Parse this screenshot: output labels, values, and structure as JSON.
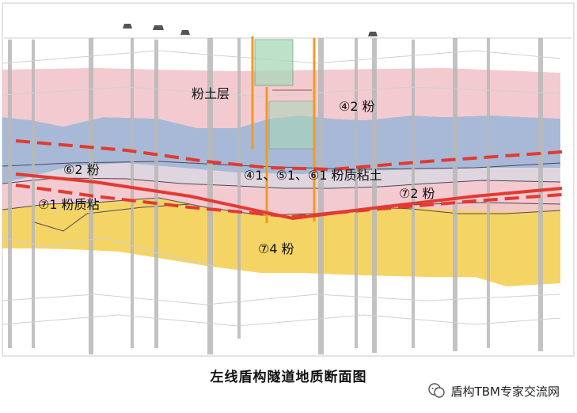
{
  "figure": {
    "caption": "左线盾构隧道地质断面图",
    "watermark": "盾构TBM专家交流网"
  },
  "layers": {
    "silt_top": "粉土层",
    "l4_2": "④2 粉",
    "l6_2": "⑥2 粉",
    "l_mixed": "④1、⑤1、⑥1 粉质粘土",
    "l7_1": "⑦1 粉质粘",
    "l7_2": "⑦2 粉",
    "l7_4": "⑦4 粉"
  },
  "colors": {
    "pink_layer": "#f2c6cc",
    "blue_layer": "#9fb3d3",
    "yellow_layer": "#f4cf55",
    "tunnel_line": "#e23a32",
    "shaft_wall": "#f29a1f",
    "shaft_fill": "#a8d8b8",
    "borehole": "#b8b8b8"
  }
}
